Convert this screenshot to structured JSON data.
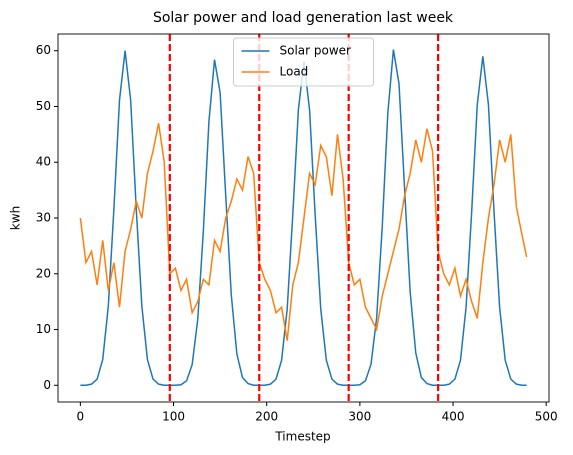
{
  "chart_data": {
    "type": "line",
    "title": "Solar power and load generation last week",
    "xlabel": "Timestep",
    "ylabel": "kwh",
    "x": [
      0,
      6,
      12,
      18,
      24,
      30,
      36,
      42,
      48,
      54,
      60,
      66,
      72,
      78,
      84,
      90,
      96,
      102,
      108,
      114,
      120,
      126,
      132,
      138,
      144,
      150,
      156,
      162,
      168,
      174,
      180,
      186,
      192,
      198,
      204,
      210,
      216,
      222,
      228,
      234,
      240,
      246,
      252,
      258,
      264,
      270,
      276,
      282,
      288,
      294,
      300,
      306,
      312,
      318,
      324,
      330,
      336,
      342,
      348,
      354,
      360,
      366,
      372,
      378,
      384,
      390,
      396,
      402,
      408,
      414,
      420,
      426,
      432,
      438,
      444,
      450,
      456,
      462,
      468,
      474,
      479
    ],
    "series": [
      {
        "name": "Solar power",
        "color": "#1f77b4",
        "values": [
          0,
          0,
          0.2,
          1.1,
          4.6,
          14.2,
          31.6,
          51.1,
          60,
          51.1,
          31.6,
          14.2,
          4.6,
          1.1,
          0.2,
          0,
          0,
          0,
          0.1,
          0.8,
          3.7,
          11.8,
          27.6,
          47.3,
          58.4,
          52.5,
          34.1,
          16.2,
          5.6,
          1.4,
          0.3,
          0,
          0,
          0,
          0.2,
          1.1,
          4.5,
          13.7,
          30.6,
          49.4,
          58,
          49.4,
          30.6,
          13.7,
          4.5,
          1.1,
          0.2,
          0,
          0,
          0,
          0.1,
          0.8,
          3.8,
          12.1,
          28.4,
          48.8,
          60.2,
          54.1,
          35.2,
          16.7,
          5.8,
          1.4,
          0.3,
          0,
          0,
          0,
          0.2,
          1.1,
          4.5,
          14,
          31.1,
          50.3,
          59,
          50.3,
          31.1,
          14,
          4.5,
          1.1,
          0.2,
          0,
          0
        ]
      },
      {
        "name": "Load",
        "color": "#ff7f0e",
        "values": [
          30,
          22,
          24,
          18,
          26,
          17,
          22,
          14,
          24,
          28,
          33,
          30,
          38,
          42,
          47,
          40,
          20,
          21,
          17,
          19,
          13,
          15,
          19,
          18,
          26,
          24,
          30,
          33,
          37,
          35,
          41,
          38,
          22,
          19,
          17,
          13,
          14,
          8,
          18,
          22,
          30,
          38,
          36,
          43,
          41,
          34,
          45,
          37,
          22,
          18,
          19,
          14,
          12,
          10,
          16,
          20,
          24,
          28,
          34,
          38,
          44,
          40,
          46,
          42,
          24,
          20,
          18,
          21,
          16,
          19,
          15,
          12,
          22,
          30,
          36,
          44,
          40,
          45,
          32,
          27,
          23
        ]
      }
    ],
    "vlines": [
      96,
      192,
      288,
      384
    ],
    "vline_color": "red",
    "xlim": [
      -24,
      503
    ],
    "ylim": [
      -3,
      63
    ],
    "xticks": [
      0,
      100,
      200,
      300,
      400,
      500
    ],
    "yticks": [
      0,
      10,
      20,
      30,
      40,
      50,
      60
    ],
    "legend": "upper center",
    "grid": false
  }
}
